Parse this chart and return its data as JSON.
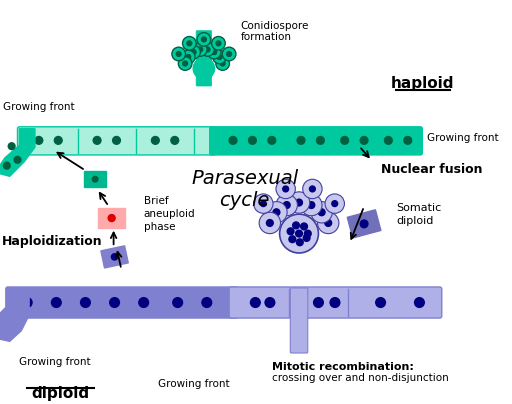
{
  "title": "Parasexual\ncycle",
  "bg_color": "#ffffff",
  "haploid_label": "haploid",
  "diploid_label": "diploid",
  "haploid_hypha_color": "#00c9a0",
  "haploid_hypha_light": "#aaf0dc",
  "diploid_hypha_color": "#8080d0",
  "diploid_hypha_light": "#b0b0e8",
  "haploid_nucleus_color": "#006040",
  "diploid_nucleus_color": "#000080",
  "conidio_spore_color": "#00c9a0",
  "conidio_spore_outline": "#006040",
  "diploid_conidio_spore": "#c8c8ee",
  "diploid_conidio_outline": "#4040a0",
  "green_square_color": "#00b890",
  "pink_square_color": "#ffaaaa",
  "pink_nucleus_color": "#dd0000",
  "blue_square_color": "#8080cc",
  "purple_square_color": "#7070bb",
  "nuclear_fusion_label": "Nuclear fusion",
  "somatic_diploid_label": "Somatic\ndiploid",
  "haploidization_label": "Haploidization",
  "brief_aneuploid_label": "Brief\naneuploid\nphase",
  "mitotic_recomb_bold": "Mitotic recombination:",
  "mitotic_recomb_normal": "crossing over and non-disjunction",
  "growing_front_label": "Growing front",
  "conidiospore_label": "Conidiospore\nformation"
}
